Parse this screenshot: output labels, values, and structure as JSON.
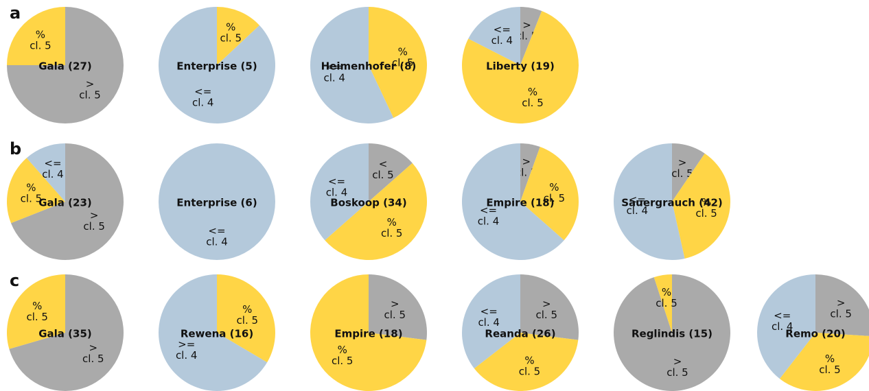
{
  "chart_data": [
    {
      "type": "pie",
      "panel": "a",
      "title": "Gala (27)",
      "categories": [
        [
          ">",
          "cl. 5"
        ],
        [
          "%",
          "cl. 5"
        ]
      ],
      "values": [
        75,
        25
      ],
      "colors": [
        "#aaaaaa",
        "#ffd546"
      ]
    },
    {
      "type": "pie",
      "title": "Enterprise (5)",
      "categories": [
        [
          "%",
          "cl. 5"
        ],
        [
          "<=",
          "cl. 4"
        ]
      ],
      "values": [
        13,
        87
      ],
      "colors": [
        "#ffd546",
        "#b4c9db"
      ]
    },
    {
      "type": "pie",
      "title": "Heimenhofer (8)",
      "categories": [
        [
          "%",
          "cl. 5"
        ],
        [
          "<=",
          "cl. 4"
        ]
      ],
      "values": [
        43,
        57
      ],
      "colors": [
        "#ffd546",
        "#b4c9db"
      ]
    },
    {
      "type": "pie",
      "title": "Liberty (19)",
      "categories": [
        [
          ">",
          "cl. 5"
        ],
        [
          "%",
          "cl. 5"
        ],
        [
          "<=",
          "cl. 4"
        ]
      ],
      "values": [
        6,
        76.5,
        17.5
      ],
      "colors": [
        "#aaaaaa",
        "#ffd546",
        "#b4c9db"
      ]
    },
    {
      "type": "pie",
      "panel": "b",
      "title": "Gala (23)",
      "categories": [
        [
          ">",
          "cl. 5"
        ],
        [
          "%",
          "cl. 5"
        ],
        [
          "<=",
          "cl. 4"
        ]
      ],
      "values": [
        69,
        19.5,
        11.5
      ],
      "colors": [
        "#aaaaaa",
        "#ffd546",
        "#b4c9db"
      ]
    },
    {
      "type": "pie",
      "title": "Enterprise (6)",
      "categories": [
        [
          "<=",
          "cl. 4"
        ]
      ],
      "values": [
        100
      ],
      "colors": [
        "#b4c9db"
      ]
    },
    {
      "type": "pie",
      "title": "Boskoop (34)",
      "categories": [
        [
          "<",
          "cl. 5"
        ],
        [
          "%",
          "cl. 5"
        ],
        [
          "<=",
          "cl. 4"
        ]
      ],
      "values": [
        13.5,
        50,
        36.5
      ],
      "colors": [
        "#aaaaaa",
        "#ffd546",
        "#b4c9db"
      ]
    },
    {
      "type": "pie",
      "title": "Empire (18)",
      "categories": [
        [
          ">",
          "cl. 5"
        ],
        [
          "%",
          "cl. 5"
        ],
        [
          "<=",
          "cl. 4"
        ]
      ],
      "values": [
        5.5,
        31,
        63.5
      ],
      "colors": [
        "#aaaaaa",
        "#ffd546",
        "#b4c9db"
      ]
    },
    {
      "type": "pie",
      "title": "Sauergrauch (42)",
      "categories": [
        [
          ">",
          "cl. 5"
        ],
        [
          "%",
          "cl. 5"
        ],
        [
          "<=",
          "cl. 4"
        ]
      ],
      "values": [
        9.5,
        37,
        53.5
      ],
      "colors": [
        "#aaaaaa",
        "#ffd546",
        "#b4c9db"
      ]
    },
    {
      "type": "pie",
      "panel": "c",
      "title": "Gala (35)",
      "categories": [
        [
          ">",
          "cl. 5"
        ],
        [
          "%",
          "cl. 5"
        ]
      ],
      "values": [
        70.5,
        29.5
      ],
      "colors": [
        "#aaaaaa",
        "#ffd546"
      ]
    },
    {
      "type": "pie",
      "title": "Rewena (16)",
      "categories": [
        [
          "%",
          "cl. 5"
        ],
        [
          ">=",
          "cl. 4"
        ]
      ],
      "values": [
        33.5,
        66.5
      ],
      "colors": [
        "#ffd546",
        "#b4c9db"
      ]
    },
    {
      "type": "pie",
      "title": "Empire (18)",
      "categories": [
        [
          ">",
          "cl. 5"
        ],
        [
          "%",
          "cl. 5"
        ]
      ],
      "values": [
        27,
        73
      ],
      "colors": [
        "#aaaaaa",
        "#ffd546"
      ]
    },
    {
      "type": "pie",
      "title": "Reanda (26)",
      "categories": [
        [
          ">",
          "cl. 5"
        ],
        [
          "%",
          "cl. 5"
        ],
        [
          "<=",
          "cl. 4"
        ]
      ],
      "values": [
        27,
        37.5,
        35.5
      ],
      "colors": [
        "#aaaaaa",
        "#ffd546",
        "#b4c9db"
      ]
    },
    {
      "type": "pie",
      "title": "Reglindis (15)",
      "categories": [
        [
          ">",
          "cl. 5"
        ],
        [
          "%",
          "cl. 5"
        ]
      ],
      "values": [
        95,
        5
      ],
      "colors": [
        "#aaaaaa",
        "#ffd546"
      ]
    },
    {
      "type": "pie",
      "title": "Remo (20)",
      "categories": [
        [
          ">",
          "cl. 5"
        ],
        [
          "%",
          "cl. 5"
        ],
        [
          "<=",
          "cl. 4"
        ]
      ],
      "values": [
        26,
        34.5,
        39.5
      ],
      "colors": [
        "#aaaaaa",
        "#ffd546",
        "#b4c9db"
      ]
    }
  ]
}
